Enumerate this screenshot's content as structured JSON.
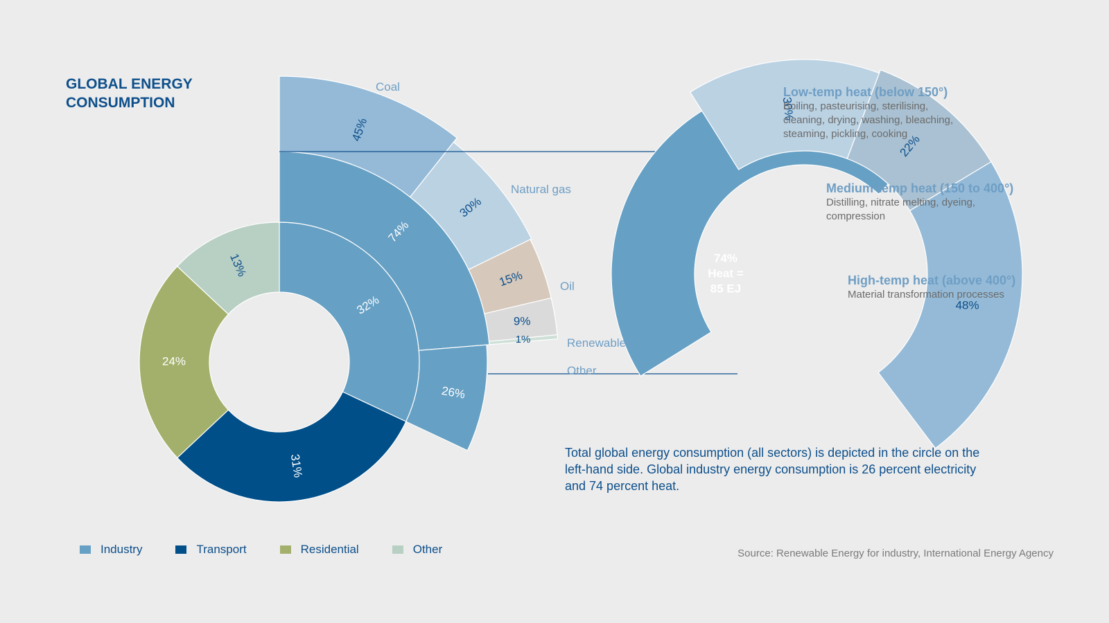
{
  "title_lines": [
    "GLOBAL ENERGY",
    "CONSUMPTION"
  ],
  "colors": {
    "industry": "#66a0c4",
    "transport": "#004f89",
    "residential": "#a3b06c",
    "other": "#b8cfc4",
    "coal": "#94bad7",
    "natural_gas": "#bbd2e3",
    "oil": "#d6c8bb",
    "renewables": "#dadada",
    "other_fuel": "#cfe0d7",
    "low_temp": "#bbd2e3",
    "medium_temp": "#a9c1d2",
    "high_temp": "#94bad7",
    "heat": "#66a0c4",
    "connector": "#0d4f8b"
  },
  "chart_data": [
    {
      "type": "pie",
      "title": "",
      "categories": [
        "Industry",
        "Transport",
        "Residential",
        "Other"
      ],
      "values": [
        32,
        31,
        24,
        13
      ],
      "labels": [
        "32%",
        "31%",
        "24%",
        "13%"
      ]
    },
    {
      "type": "pie",
      "categories": [
        "Heat",
        "Electricity"
      ],
      "values": [
        74,
        26
      ],
      "labels": [
        "74%",
        "26%"
      ]
    },
    {
      "type": "pie",
      "categories": [
        "Coal",
        "Natural gas",
        "Oil",
        "Renewables",
        "Other"
      ],
      "values": [
        45,
        30,
        15,
        9,
        1
      ],
      "labels": [
        "45%",
        "30%",
        "15%",
        "9%",
        "1%"
      ]
    },
    {
      "type": "pie",
      "categories": [
        "Low-temp heat (below 150°)",
        "Medium-temp heat (150 to 400°)",
        "High-temp heat (above 400°)"
      ],
      "values": [
        30,
        22,
        48
      ],
      "labels": [
        "30%",
        "22%",
        "48%"
      ],
      "center_lines": [
        "74%",
        "Heat =",
        "85 EJ"
      ]
    }
  ],
  "fuel_labels": [
    "Coal",
    "Natural gas",
    "Oil",
    "Renewables",
    "Other"
  ],
  "heat_types": [
    {
      "heading": "Low-temp heat (below 150°)",
      "desc": [
        "Boiling, pasteurising,  sterilising,",
        "cleaning, drying, washing, bleaching,",
        "steaming, pickling, cooking"
      ]
    },
    {
      "heading": "Medium-temp heat (150 to 400°)",
      "desc": [
        "Distilling, nitrate melting, dyeing,",
        "compression"
      ]
    },
    {
      "heading": "High-temp heat (above 400°)",
      "desc": [
        "Material transformation processes"
      ]
    }
  ],
  "note": "Total global energy consumption (all sectors) is depicted in the circle on the left-hand side. Global industry energy consumption is 26 percent electricity and 74 percent heat.",
  "legend": [
    "Industry",
    "Transport",
    "Residential",
    "Other"
  ],
  "source": "Source: Renewable Energy for industry, International Energy Agency"
}
